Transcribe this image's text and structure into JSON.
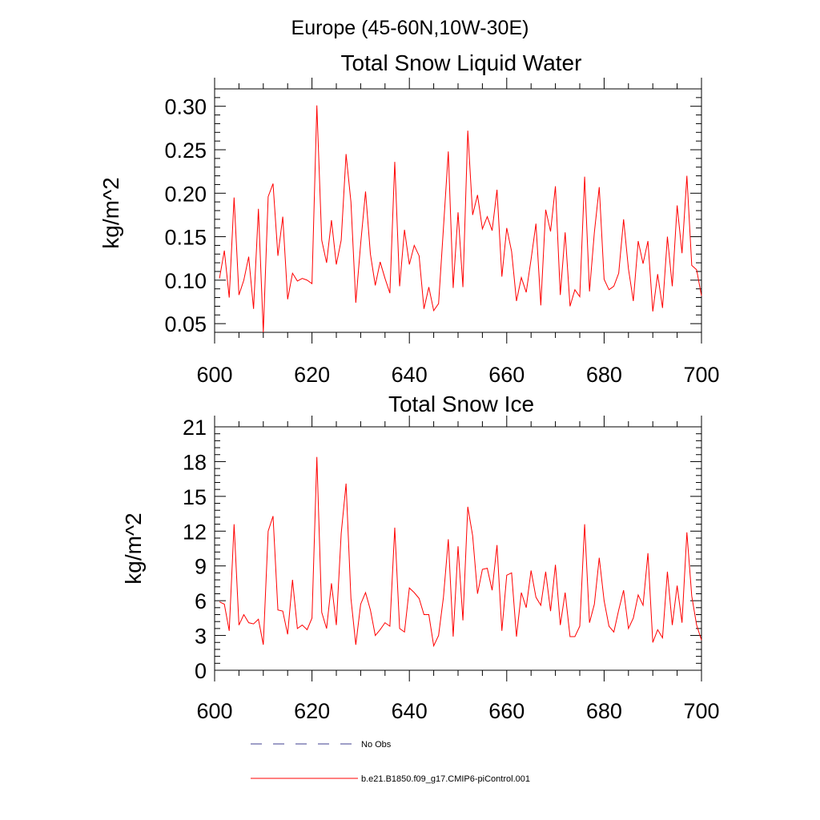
{
  "suptitle": "Europe (45-60N,10W-30E)",
  "legend": {
    "obs_label": "No Obs",
    "model_label": "b.e21.B1850.f09_g17.CMIP6-piControl.001",
    "obs_color": "#3d3d8f",
    "model_color": "#ff0000"
  },
  "chart_data": [
    {
      "type": "line",
      "title": "Total Snow Liquid Water",
      "xlabel": "",
      "ylabel": "kg/m^2",
      "xlim": [
        600,
        700
      ],
      "ylim": [
        0.04,
        0.32
      ],
      "xticks": [
        600,
        620,
        640,
        660,
        680,
        700
      ],
      "xtick_labels": [
        "600",
        "620",
        "640",
        "660",
        "680",
        "700"
      ],
      "yticks": [
        0.05,
        0.1,
        0.15,
        0.2,
        0.25,
        0.3
      ],
      "ytick_labels": [
        "0.05",
        "0.10",
        "0.15",
        "0.20",
        "0.25",
        "0.30"
      ],
      "series": [
        {
          "name": "b.e21.B1850.f09_g17.CMIP6-piControl.001",
          "color": "#ff0000",
          "x_start": 601,
          "values": [
            0.102,
            0.134,
            0.08,
            0.195,
            0.083,
            0.1,
            0.127,
            0.067,
            0.182,
            0.04,
            0.196,
            0.211,
            0.128,
            0.173,
            0.078,
            0.108,
            0.099,
            0.102,
            0.1,
            0.096,
            0.301,
            0.146,
            0.12,
            0.169,
            0.118,
            0.146,
            0.245,
            0.19,
            0.074,
            0.142,
            0.202,
            0.13,
            0.094,
            0.121,
            0.102,
            0.085,
            0.236,
            0.093,
            0.158,
            0.118,
            0.14,
            0.128,
            0.067,
            0.092,
            0.065,
            0.073,
            0.16,
            0.248,
            0.091,
            0.178,
            0.092,
            0.272,
            0.175,
            0.198,
            0.159,
            0.173,
            0.157,
            0.204,
            0.104,
            0.16,
            0.133,
            0.076,
            0.103,
            0.086,
            0.124,
            0.165,
            0.071,
            0.181,
            0.156,
            0.208,
            0.083,
            0.155,
            0.07,
            0.089,
            0.081,
            0.219,
            0.087,
            0.155,
            0.207,
            0.101,
            0.089,
            0.093,
            0.108,
            0.17,
            0.113,
            0.076,
            0.145,
            0.119,
            0.145,
            0.064,
            0.107,
            0.068,
            0.15,
            0.093,
            0.186,
            0.131,
            0.22,
            0.117,
            0.112,
            0.082
          ]
        }
      ]
    },
    {
      "type": "line",
      "title": "Total Snow Ice",
      "xlabel": "",
      "ylabel": "kg/m^2",
      "xlim": [
        600,
        700
      ],
      "ylim": [
        0,
        21
      ],
      "xticks": [
        600,
        620,
        640,
        660,
        680,
        700
      ],
      "xtick_labels": [
        "600",
        "620",
        "640",
        "660",
        "680",
        "700"
      ],
      "yticks": [
        0,
        3,
        6,
        9,
        12,
        15,
        18,
        21
      ],
      "ytick_labels": [
        "0",
        "3",
        "6",
        "9",
        "12",
        "15",
        "18",
        "21"
      ],
      "series": [
        {
          "name": "b.e21.B1850.f09_g17.CMIP6-piControl.001",
          "color": "#ff0000",
          "x_start": 601,
          "values": [
            5.9,
            5.7,
            3.4,
            12.6,
            3.9,
            4.8,
            4.1,
            4.0,
            4.4,
            2.2,
            12.0,
            13.3,
            5.2,
            5.1,
            3.1,
            7.8,
            3.6,
            3.9,
            3.5,
            4.5,
            18.4,
            5.0,
            3.6,
            7.5,
            3.9,
            11.8,
            16.1,
            6.2,
            2.2,
            5.7,
            6.7,
            5.2,
            3.0,
            3.5,
            4.1,
            3.8,
            12.3,
            3.6,
            3.3,
            7.1,
            6.7,
            6.2,
            4.8,
            4.8,
            2.1,
            3.0,
            6.3,
            11.3,
            2.9,
            10.7,
            4.3,
            14.1,
            11.6,
            6.6,
            8.7,
            8.8,
            6.9,
            10.8,
            3.4,
            8.2,
            8.4,
            2.9,
            6.7,
            5.4,
            8.6,
            6.3,
            5.6,
            8.5,
            5.1,
            9.1,
            3.9,
            6.7,
            2.9,
            2.9,
            3.8,
            12.6,
            4.1,
            5.7,
            9.7,
            6.0,
            3.8,
            3.3,
            5.2,
            6.9,
            3.6,
            4.5,
            6.5,
            5.6,
            10.1,
            2.4,
            3.5,
            2.8,
            8.5,
            3.9,
            7.3,
            4.1,
            11.9,
            6.4,
            3.9,
            2.6
          ]
        }
      ]
    }
  ]
}
